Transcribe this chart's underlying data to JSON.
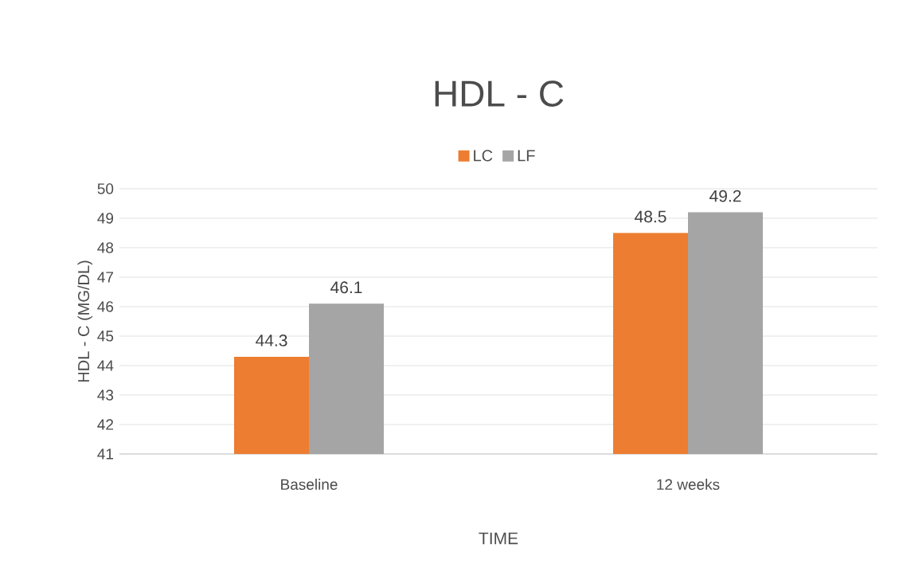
{
  "chart_data": {
    "type": "bar",
    "title": "HDL - C",
    "xlabel": "TIME",
    "ylabel": "HDL - C (MG/DL)",
    "categories": [
      "Baseline",
      "12 weeks"
    ],
    "series": [
      {
        "name": "LC",
        "color": "#ed7d31",
        "values": [
          44.3,
          48.5
        ]
      },
      {
        "name": "LF",
        "color": "#a5a5a5",
        "values": [
          46.1,
          49.2
        ]
      }
    ],
    "ylim": [
      41,
      50
    ],
    "yticks": [
      41,
      42,
      43,
      44,
      45,
      46,
      47,
      48,
      49,
      50
    ],
    "grid": "y",
    "legend": "top",
    "data_labels": true
  }
}
